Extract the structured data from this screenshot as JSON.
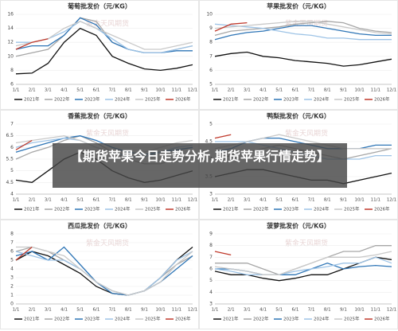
{
  "chart_data": [
    {
      "type": "line",
      "title": "葡萄批发价（元/KG）",
      "categories": [
        "1/1",
        "2/1",
        "3/1",
        "4/1",
        "5/1",
        "6/1",
        "7/1",
        "8/1",
        "9/1",
        "10/1",
        "11/1",
        "12/1"
      ],
      "ylim": [
        6,
        16
      ],
      "yticks": [
        6,
        8,
        10,
        12,
        14,
        16
      ],
      "grid": true,
      "series": [
        {
          "name": "2021年",
          "color": "#111111",
          "values": [
            7.5,
            7.6,
            9,
            12,
            14,
            13,
            10,
            9,
            8.2,
            8,
            8.3,
            8.8
          ]
        },
        {
          "name": "2022年",
          "color": "#a6a6a6",
          "values": [
            10,
            10.5,
            11,
            13,
            15.5,
            15,
            12,
            11,
            10.5,
            10.5,
            11,
            11.5
          ]
        },
        {
          "name": "2023年",
          "color": "#2e75b6",
          "values": [
            11,
            11.5,
            11.5,
            13,
            15.5,
            14.5,
            12,
            11,
            10.5,
            10.5,
            10.8,
            10.8
          ]
        },
        {
          "name": "2024年",
          "color": "#9dc3e6",
          "values": [
            12,
            12,
            12.5,
            13.5,
            15,
            14,
            12.5,
            11,
            10.5,
            10.5,
            11,
            11.5
          ]
        },
        {
          "name": "2025年",
          "color": "#c9c9c9",
          "values": [
            11.5,
            12,
            12.5,
            14,
            15,
            14,
            13,
            12,
            11,
            11,
            11.5,
            12
          ]
        },
        {
          "name": "2026年",
          "color": "#c0392b",
          "values": [
            11,
            12,
            12.5,
            null,
            null,
            null,
            null,
            null,
            null,
            null,
            null,
            null
          ]
        }
      ]
    },
    {
      "type": "line",
      "title": "苹果批发价（元/KG）",
      "categories": [
        "1/1",
        "2/1",
        "3/1",
        "4/1",
        "5/1",
        "6/1",
        "7/1",
        "8/1",
        "9/1",
        "10/1",
        "11/1",
        "12/1"
      ],
      "ylim": [
        5,
        10
      ],
      "yticks": [
        5,
        6,
        7,
        8,
        9,
        10
      ],
      "grid": true,
      "series": [
        {
          "name": "2021年",
          "color": "#111111",
          "values": [
            7,
            7.2,
            7.3,
            7,
            6.9,
            6.7,
            6.6,
            6.5,
            6.3,
            6.4,
            6.6,
            6.8
          ]
        },
        {
          "name": "2022年",
          "color": "#a6a6a6",
          "values": [
            8.5,
            8.8,
            8.9,
            9,
            9.1,
            9.3,
            9.4,
            9.5,
            9.4,
            9,
            8.8,
            8.7
          ]
        },
        {
          "name": "2023年",
          "color": "#2e75b6",
          "values": [
            8.2,
            8.5,
            8.7,
            8.8,
            9,
            9.2,
            9.2,
            9,
            8.8,
            8.6,
            8.5,
            8.5
          ]
        },
        {
          "name": "2024年",
          "color": "#9dc3e6",
          "values": [
            9.3,
            9.2,
            9.1,
            9,
            8.8,
            8.6,
            8.5,
            8.3,
            8.3,
            8.2,
            8.2,
            8.2
          ]
        },
        {
          "name": "2025年",
          "color": "#c9c9c9",
          "values": [
            9,
            9.1,
            9.2,
            9.3,
            9.4,
            9.5,
            9.5,
            9.3,
            9.1,
            8.9,
            8.7,
            8.6
          ]
        },
        {
          "name": "2026年",
          "color": "#c0392b",
          "values": [
            8.8,
            9.3,
            9.4,
            null,
            null,
            null,
            null,
            null,
            null,
            null,
            null,
            null
          ]
        }
      ]
    },
    {
      "type": "line",
      "title": "香蕉批发价（元/KG）",
      "categories": [
        "1/1",
        "2/1",
        "3/1",
        "4/1",
        "5/1",
        "6/1",
        "7/1",
        "8/1",
        "9/1",
        "10/1",
        "11/1",
        "12/1"
      ],
      "ylim": [
        4,
        7
      ],
      "yticks": [
        4,
        4.5,
        5,
        5.5,
        6,
        6.5,
        7
      ],
      "grid": true,
      "series": [
        {
          "name": "2021年",
          "color": "#111111",
          "values": [
            4.6,
            4.5,
            5,
            5.5,
            5.8,
            5.5,
            5,
            4.7,
            4.5,
            4.6,
            4.8,
            5
          ]
        },
        {
          "name": "2022年",
          "color": "#a6a6a6",
          "values": [
            5.5,
            5.8,
            6,
            6.3,
            6.5,
            6.2,
            5.8,
            5.5,
            5.3,
            5.3,
            5.5,
            5.6
          ]
        },
        {
          "name": "2023年",
          "color": "#2e75b6",
          "values": [
            5.8,
            6,
            6.2,
            6.4,
            6.5,
            6.3,
            6,
            5.8,
            5.7,
            5.8,
            5.9,
            6
          ]
        },
        {
          "name": "2024年",
          "color": "#9dc3e6",
          "values": [
            6,
            6.2,
            6.3,
            6.4,
            6.3,
            6,
            5.8,
            5.6,
            5.6,
            5.8,
            6,
            6.1
          ]
        },
        {
          "name": "2025年",
          "color": "#c9c9c9",
          "values": [
            6.2,
            6.3,
            6.4,
            6.5,
            6.3,
            6,
            5.8,
            5.7,
            5.8,
            6,
            6.2,
            6.3
          ]
        },
        {
          "name": "2026年",
          "color": "#c0392b",
          "values": [
            5.9,
            6.3,
            null,
            null,
            null,
            null,
            null,
            null,
            null,
            null,
            null,
            null
          ]
        }
      ]
    },
    {
      "type": "line",
      "title": "鸭梨批发价（元/KG）",
      "categories": [
        "1/1",
        "2/1",
        "3/1",
        "4/1",
        "5/1",
        "6/1",
        "7/1",
        "8/1",
        "9/1",
        "10/1",
        "11/1",
        "12/1"
      ],
      "ylim": [
        3,
        5
      ],
      "yticks": [
        3,
        3.5,
        4,
        4.5,
        5
      ],
      "grid": true,
      "series": [
        {
          "name": "2021年",
          "color": "#111111",
          "values": [
            3.5,
            3.6,
            3.7,
            3.7,
            3.6,
            3.5,
            3.4,
            3.4,
            3.3,
            3.4,
            3.5,
            3.6
          ]
        },
        {
          "name": "2022年",
          "color": "#a6a6a6",
          "values": [
            4,
            4.1,
            4.2,
            4.3,
            4.4,
            4.3,
            4.2,
            4.1,
            4,
            4.1,
            4.2,
            4.3
          ]
        },
        {
          "name": "2023年",
          "color": "#2e75b6",
          "values": [
            4.2,
            4.3,
            4.5,
            4.6,
            4.6,
            4.5,
            4.4,
            4.3,
            4.3,
            4.3,
            4.4,
            4.4
          ]
        },
        {
          "name": "2024年",
          "color": "#9dc3e6",
          "values": [
            4.5,
            4.5,
            4.5,
            4.4,
            4.3,
            4.2,
            4.1,
            4,
            4,
            4,
            4.1,
            4.1
          ]
        },
        {
          "name": "2025年",
          "color": "#c9c9c9",
          "values": [
            4.3,
            4.4,
            4.5,
            4.6,
            4.7,
            4.6,
            4.5,
            4.4,
            4.3,
            4.3,
            4.3,
            4.3
          ]
        },
        {
          "name": "2026年",
          "color": "#c0392b",
          "values": [
            4.6,
            4.7,
            null,
            null,
            null,
            null,
            null,
            null,
            null,
            null,
            null,
            null
          ]
        }
      ]
    },
    {
      "type": "line",
      "title": "西瓜批发价（元/KG）",
      "categories": [
        "1/1",
        "2/1",
        "3/1",
        "4/1",
        "5/1",
        "6/1",
        "7/1",
        "8/1",
        "9/1",
        "10/1",
        "11/1",
        "12/1"
      ],
      "ylim": [
        0,
        8
      ],
      "yticks": [
        0,
        1,
        2,
        3,
        4,
        5,
        6,
        7,
        8
      ],
      "grid": true,
      "series": [
        {
          "name": "2021年",
          "color": "#111111",
          "values": [
            5,
            6,
            5.5,
            4.5,
            3.5,
            2,
            1.2,
            1,
            1.5,
            3,
            5,
            6.5
          ]
        },
        {
          "name": "2022年",
          "color": "#a6a6a6",
          "values": [
            6,
            6.5,
            6,
            5,
            4,
            2.5,
            1.5,
            1,
            1.5,
            3,
            4.5,
            5.5
          ]
        },
        {
          "name": "2023年",
          "color": "#2e75b6",
          "values": [
            5.5,
            6,
            5,
            6.5,
            4.5,
            2.5,
            1.2,
            1,
            1.5,
            2.5,
            4,
            5.5
          ]
        },
        {
          "name": "2024年",
          "color": "#9dc3e6",
          "values": [
            6,
            5.5,
            5,
            5,
            4,
            2.5,
            1.5,
            1,
            1.5,
            3,
            5,
            6
          ]
        },
        {
          "name": "2025年",
          "color": "#c9c9c9",
          "values": [
            6.5,
            6.5,
            6,
            5.5,
            4,
            2.5,
            1.5,
            1,
            1.5,
            2.5,
            4.5,
            6
          ]
        },
        {
          "name": "2026年",
          "color": "#c0392b",
          "values": [
            5,
            6.5,
            null,
            null,
            null,
            null,
            null,
            null,
            null,
            null,
            null,
            null
          ]
        }
      ]
    },
    {
      "type": "line",
      "title": "菠萝批发价（元/KG）",
      "categories": [
        "1/1",
        "2/1",
        "3/1",
        "4/1",
        "5/1",
        "6/1",
        "7/1",
        "8/1",
        "9/1",
        "10/1",
        "11/1",
        "12/1"
      ],
      "ylim": [
        3,
        9
      ],
      "yticks": [
        3,
        4,
        5,
        6,
        7,
        8,
        9
      ],
      "grid": true,
      "series": [
        {
          "name": "2021年",
          "color": "#111111",
          "values": [
            5.8,
            5.5,
            5.5,
            5.2,
            5,
            5.2,
            5.5,
            5.5,
            6,
            6.5,
            7,
            6.8
          ]
        },
        {
          "name": "2022年",
          "color": "#a6a6a6",
          "values": [
            6.5,
            6.5,
            6.5,
            6,
            5.5,
            6,
            6.5,
            7,
            7.5,
            7.5,
            8,
            8
          ]
        },
        {
          "name": "2023年",
          "color": "#2e75b6",
          "values": [
            6,
            6,
            5.8,
            5.5,
            5.5,
            5.5,
            6,
            6.5,
            6,
            6.2,
            6.3,
            6.2
          ]
        },
        {
          "name": "2024年",
          "color": "#9dc3e6",
          "values": [
            6,
            5.8,
            5.5,
            5.5,
            5.5,
            5.8,
            6,
            6.2,
            6.5,
            6.5,
            7,
            6.5
          ]
        },
        {
          "name": "2025年",
          "color": "#c9c9c9",
          "values": [
            6.2,
            6,
            5.8,
            5.5,
            5.5,
            6,
            6.5,
            7,
            7,
            7,
            7.2,
            7.5
          ]
        },
        {
          "name": "2026年",
          "color": "#c0392b",
          "values": [
            7.5,
            7.2,
            null,
            null,
            null,
            null,
            null,
            null,
            null,
            null,
            null,
            null
          ]
        }
      ]
    }
  ],
  "watermark": "紫金天风期货",
  "banner": "【期货苹果今日走势分析,期货苹果行情走势】"
}
